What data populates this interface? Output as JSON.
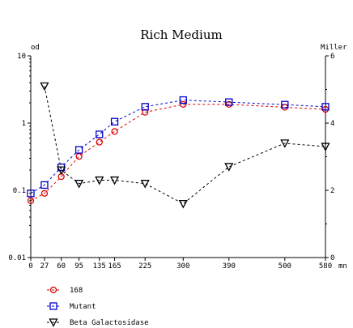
{
  "chart_data": {
    "type": "line",
    "title": "Rich Medium",
    "y_left_label": "od",
    "y_right_label": "Miller",
    "x_unit": "mn",
    "x_ticks": [
      0,
      27,
      60,
      95,
      135,
      165,
      225,
      300,
      390,
      500,
      580
    ],
    "x_tick_labels": [
      "0",
      "27",
      "60",
      "95",
      "135",
      "165",
      "225",
      "300",
      "390",
      "500",
      "580"
    ],
    "xlim": [
      0,
      580
    ],
    "y_left_scale": "log",
    "y_left_lim": [
      0.01,
      10
    ],
    "y_left_ticks": [
      0.01,
      0.1,
      1,
      10
    ],
    "y_left_tick_labels": [
      "0.01",
      "0.1",
      "1",
      "10"
    ],
    "y_right_lim": [
      0,
      6
    ],
    "y_right_ticks": [
      0,
      2,
      4,
      6
    ],
    "y_right_tick_labels": [
      "0",
      "2",
      "4",
      "6"
    ],
    "grid": false,
    "legend_position": "bottom-left",
    "series": [
      {
        "name": "168",
        "axis": "left",
        "marker": "circle",
        "color": "#dd0000",
        "x": [
          0,
          27,
          60,
          95,
          135,
          165,
          225,
          300,
          390,
          500,
          580
        ],
        "y": [
          0.07,
          0.09,
          0.16,
          0.32,
          0.52,
          0.75,
          1.45,
          1.9,
          1.9,
          1.72,
          1.6
        ]
      },
      {
        "name": "Mutant",
        "axis": "left",
        "marker": "square",
        "color": "#0000cc",
        "x": [
          0,
          27,
          60,
          95,
          135,
          165,
          225,
          300,
          390,
          500,
          580
        ],
        "y": [
          0.09,
          0.12,
          0.22,
          0.4,
          0.68,
          1.05,
          1.75,
          2.2,
          2.05,
          1.88,
          1.75
        ]
      },
      {
        "name": "Beta Galactosidase",
        "axis": "right",
        "marker": "triangle-down",
        "color": "#000000",
        "x": [
          27,
          60,
          95,
          135,
          165,
          225,
          300,
          390,
          500,
          580
        ],
        "y": [
          5.1,
          2.6,
          2.2,
          2.3,
          2.3,
          2.2,
          1.6,
          2.7,
          3.4,
          3.3
        ]
      }
    ]
  }
}
